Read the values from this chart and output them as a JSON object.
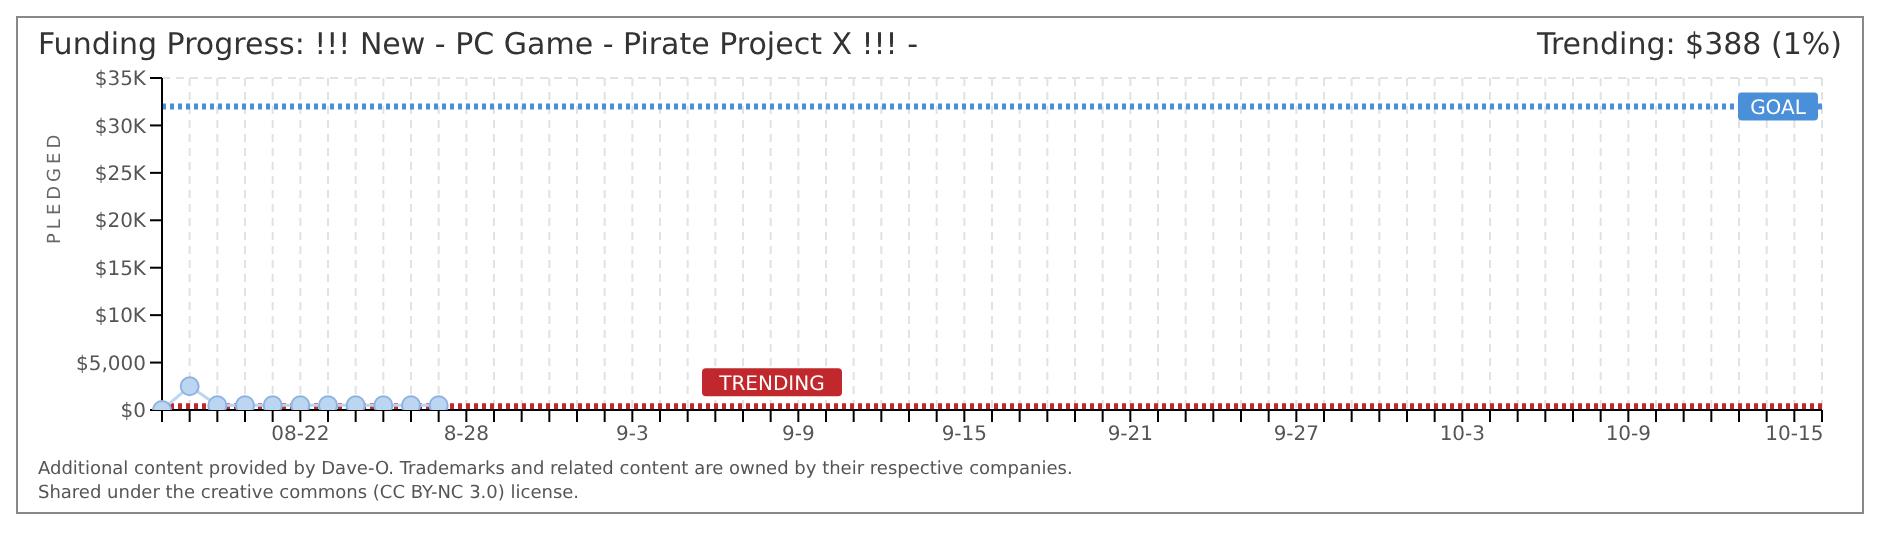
{
  "chart_data": {
    "type": "line",
    "title": "Funding Progress: !!! New - PC Game - Pirate Project X !!! -",
    "subtitle": "Trending: $388 (1%)",
    "ylabel": "PLEDGED",
    "categories": [
      null,
      null,
      null,
      null,
      null,
      "08-22",
      null,
      null,
      null,
      null,
      null,
      "8-28",
      null,
      null,
      null,
      null,
      null,
      "9-3",
      null,
      null,
      null,
      null,
      null,
      "9-9",
      null,
      null,
      null,
      null,
      null,
      "9-15",
      null,
      null,
      null,
      null,
      null,
      "9-21",
      null,
      null,
      null,
      null,
      null,
      "9-27",
      null,
      null,
      null,
      null,
      null,
      "10-3",
      null,
      null,
      null,
      null,
      null,
      "10-9",
      null,
      null,
      null,
      null,
      null,
      "10-15",
      null
    ],
    "series": [
      {
        "color": "#bcd6f2",
        "values": [
          0,
          2500,
          500,
          500,
          500,
          500,
          500,
          500,
          500,
          500,
          500,
          null,
          null,
          null,
          null,
          null,
          null,
          null,
          null,
          null,
          null,
          null,
          null,
          null,
          null,
          null,
          null,
          null,
          null,
          null,
          null,
          null,
          null,
          null,
          null,
          null,
          null,
          null,
          null,
          null,
          null,
          null,
          null,
          null,
          null,
          null,
          null,
          null,
          null,
          null,
          null,
          null,
          null,
          null,
          null,
          null,
          null,
          null,
          null,
          null,
          null
        ]
      }
    ],
    "ylim": [
      0,
      35000
    ],
    "yticks": [
      {
        "value": 0,
        "label": "$0"
      },
      {
        "value": 5000,
        "label": "$5,000"
      },
      {
        "value": 10000,
        "label": "$10K"
      },
      {
        "value": 15000,
        "label": "$15K"
      },
      {
        "value": 20000,
        "label": "$20K"
      },
      {
        "value": 25000,
        "label": "$25K"
      },
      {
        "value": 30000,
        "label": "$30K"
      },
      {
        "value": 35000,
        "label": "$35K"
      }
    ],
    "ref_lines": [
      {
        "axis": "y",
        "value": 32000,
        "label": "GOAL",
        "color": "#4a90d9",
        "line_style": "dotted"
      },
      {
        "axis": "y",
        "value": 388,
        "label": "TRENDING",
        "color": "#c0282d",
        "line_style": "dotted"
      }
    ],
    "grid": true,
    "legend": false,
    "marker": "circle",
    "line_style": "solid",
    "annotations": [
      "Additional content provided by Dave-O. Trademarks and related content are owned by their respective companies.",
      "Shared under the creative commons (CC BY-NC 3.0) license."
    ]
  }
}
